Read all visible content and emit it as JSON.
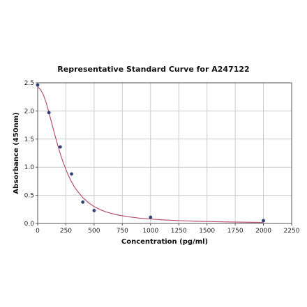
{
  "chart_data": {
    "type": "scatter",
    "title": "Representative Standard Curve for A247122",
    "xlabel": "Concentration (pg/ml)",
    "ylabel": "Absorbance (450nm)",
    "xlim": [
      0,
      2250
    ],
    "ylim": [
      0,
      2.5
    ],
    "x_ticks": [
      "0",
      "250",
      "500",
      "750",
      "1000",
      "1250",
      "1500",
      "1750",
      "2000",
      "2250"
    ],
    "y_ticks": [
      "0.0",
      "0.5",
      "1.0",
      "1.5",
      "2.0",
      "2.5"
    ],
    "grid": true,
    "legend": "none",
    "series": [
      {
        "x": [
          0,
          100,
          200,
          300,
          400,
          500,
          1000,
          2000
        ],
        "y": [
          2.46,
          1.97,
          1.36,
          0.88,
          0.38,
          0.23,
          0.11,
          0.05
        ]
      }
    ],
    "fit_curve": {
      "x": [
        0,
        25,
        50,
        75,
        100,
        125,
        150,
        175,
        200,
        225,
        250,
        275,
        300,
        325,
        350,
        375,
        400,
        450,
        500,
        550,
        600,
        650,
        700,
        800,
        900,
        1000,
        1100,
        1200,
        1300,
        1400,
        1500,
        1600,
        1700,
        1800,
        1900,
        2000
      ],
      "y": [
        2.43,
        2.38,
        2.29,
        2.15,
        1.97,
        1.78,
        1.59,
        1.41,
        1.24,
        1.09,
        0.96,
        0.84,
        0.74,
        0.65,
        0.58,
        0.52,
        0.46,
        0.37,
        0.3,
        0.25,
        0.21,
        0.18,
        0.155,
        0.12,
        0.095,
        0.08,
        0.065,
        0.055,
        0.047,
        0.04,
        0.035,
        0.03,
        0.026,
        0.023,
        0.02,
        0.018
      ]
    },
    "colors": {
      "curve": "#b5506e",
      "points": "#2e3f7a",
      "grid": "#cccccc",
      "axis": "#555555"
    }
  }
}
